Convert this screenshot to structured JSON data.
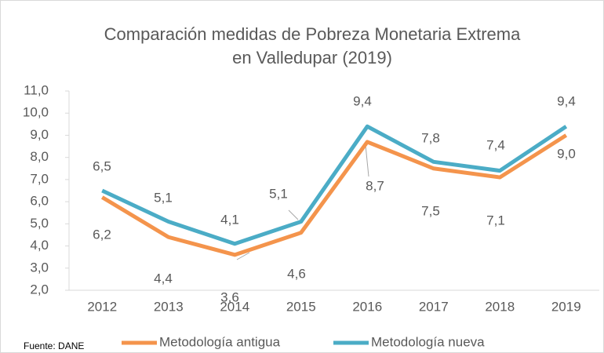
{
  "chart_data": {
    "type": "line",
    "title": "Comparación medidas de Pobreza Monetaria Extrema",
    "subtitle": "en Valledupar (2019)",
    "annotation": "Fuente: DANE",
    "categories": [
      "2012",
      "2013",
      "2014",
      "2015",
      "2016",
      "2017",
      "2018",
      "2019"
    ],
    "series": [
      {
        "name": "Metodología antigua",
        "color": "#f4944c",
        "values": [
          6.2,
          4.4,
          3.6,
          4.6,
          8.7,
          7.5,
          7.1,
          9.0
        ],
        "value_labels": [
          "6,2",
          "4,4",
          "3,6",
          "4,6",
          "8,7",
          "7,5",
          "7,1",
          "9,0"
        ]
      },
      {
        "name": "Metodología nueva",
        "color": "#4bacc6",
        "values": [
          6.5,
          5.1,
          4.1,
          5.1,
          9.4,
          7.8,
          7.4,
          9.4
        ],
        "value_labels": [
          "6,5",
          "5,1",
          "4,1",
          "5,1",
          "9,4",
          "7,8",
          "7,4",
          "9,4"
        ]
      }
    ],
    "ylim": [
      2,
      11
    ],
    "yticks": [
      {
        "value": 2,
        "label": "2,0"
      },
      {
        "value": 3,
        "label": "3,0"
      },
      {
        "value": 4,
        "label": "4,0"
      },
      {
        "value": 5,
        "label": "5,0"
      },
      {
        "value": 6,
        "label": "6,0"
      },
      {
        "value": 7,
        "label": "7,0"
      },
      {
        "value": 8,
        "label": "8,0"
      },
      {
        "value": 9,
        "label": "9,0"
      },
      {
        "value": 10,
        "label": "10,0"
      },
      {
        "value": 11,
        "label": "11,0"
      }
    ],
    "legend": "bottom"
  }
}
